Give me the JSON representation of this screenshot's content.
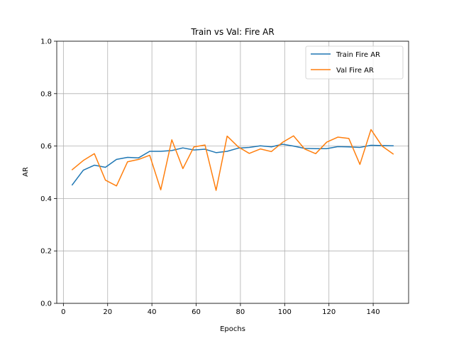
{
  "chart_data": {
    "type": "line",
    "title": "Train vs Val: Fire AR",
    "xlabel": "Epochs",
    "ylabel": "AR",
    "xlim": [
      -3,
      156
    ],
    "ylim": [
      0.0,
      1.0
    ],
    "xticks": [
      0,
      20,
      40,
      60,
      80,
      100,
      120,
      140
    ],
    "yticks": [
      0.0,
      0.2,
      0.4,
      0.6,
      0.8,
      1.0
    ],
    "xtick_labels": [
      "0",
      "20",
      "40",
      "60",
      "80",
      "100",
      "120",
      "140"
    ],
    "ytick_labels": [
      "0.0",
      "0.2",
      "0.4",
      "0.6",
      "0.8",
      "1.0"
    ],
    "grid": true,
    "legend_position": "top-right",
    "x": [
      4,
      9,
      14,
      19,
      24,
      29,
      34,
      39,
      44,
      49,
      54,
      59,
      64,
      69,
      74,
      79,
      84,
      89,
      94,
      99,
      104,
      109,
      114,
      119,
      124,
      129,
      134,
      139,
      144,
      149
    ],
    "series": [
      {
        "name": "Train Fire AR",
        "color": "#1f77b4",
        "values": [
          0.452,
          0.508,
          0.527,
          0.519,
          0.549,
          0.557,
          0.555,
          0.58,
          0.58,
          0.583,
          0.593,
          0.585,
          0.588,
          0.575,
          0.58,
          0.592,
          0.595,
          0.601,
          0.597,
          0.607,
          0.6,
          0.591,
          0.59,
          0.59,
          0.598,
          0.597,
          0.595,
          0.603,
          0.602,
          0.601
        ]
      },
      {
        "name": "Val Fire AR",
        "color": "#ff7f0e",
        "values": [
          0.51,
          0.545,
          0.571,
          0.47,
          0.448,
          0.54,
          0.549,
          0.565,
          0.433,
          0.624,
          0.514,
          0.597,
          0.604,
          0.431,
          0.638,
          0.597,
          0.572,
          0.589,
          0.579,
          0.614,
          0.639,
          0.589,
          0.571,
          0.615,
          0.634,
          0.629,
          0.53,
          0.663,
          0.6,
          0.57
        ]
      }
    ]
  }
}
